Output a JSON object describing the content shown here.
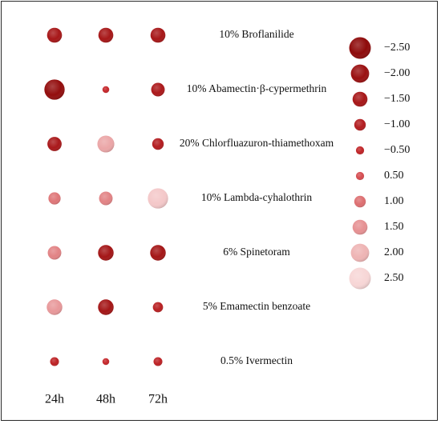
{
  "chart_data": {
    "type": "bubble-matrix",
    "x_categories": [
      "24h",
      "48h",
      "72h"
    ],
    "y_categories": [
      "10% Broflanilide",
      "10% Abamectin·β-cypermethrin",
      "20% Chlorfluazuron-thiamethoxam",
      "10% Lambda-cyhalothrin",
      "6% Spinetoram",
      "5% Emamectin benzoate",
      "0.5% Ivermectin"
    ],
    "values": [
      [
        -1.5,
        -1.5,
        -1.5
      ],
      [
        -2.3,
        -0.3,
        -1.3
      ],
      [
        -1.4,
        1.8,
        -1.0
      ],
      [
        1.1,
        1.3,
        2.3
      ],
      [
        1.3,
        -1.6,
        -1.6
      ],
      [
        1.6,
        -1.6,
        -0.8
      ],
      [
        -0.6,
        -0.3,
        -0.6
      ]
    ],
    "legend": {
      "position": "right",
      "values": [
        -2.5,
        -2.0,
        -1.5,
        -1.0,
        -0.5,
        0.5,
        1.0,
        1.5,
        2.0,
        2.5
      ],
      "labels": [
        "−2.50",
        "−2.00",
        "−1.50",
        "−1.00",
        "−0.50",
        "0.50",
        "1.00",
        "1.50",
        "2.00",
        "2.50"
      ]
    },
    "colors": {
      "dark": "#8e0a0a",
      "mid": "#cc2a2e",
      "light": "#f7d6d6"
    },
    "grid": false
  }
}
